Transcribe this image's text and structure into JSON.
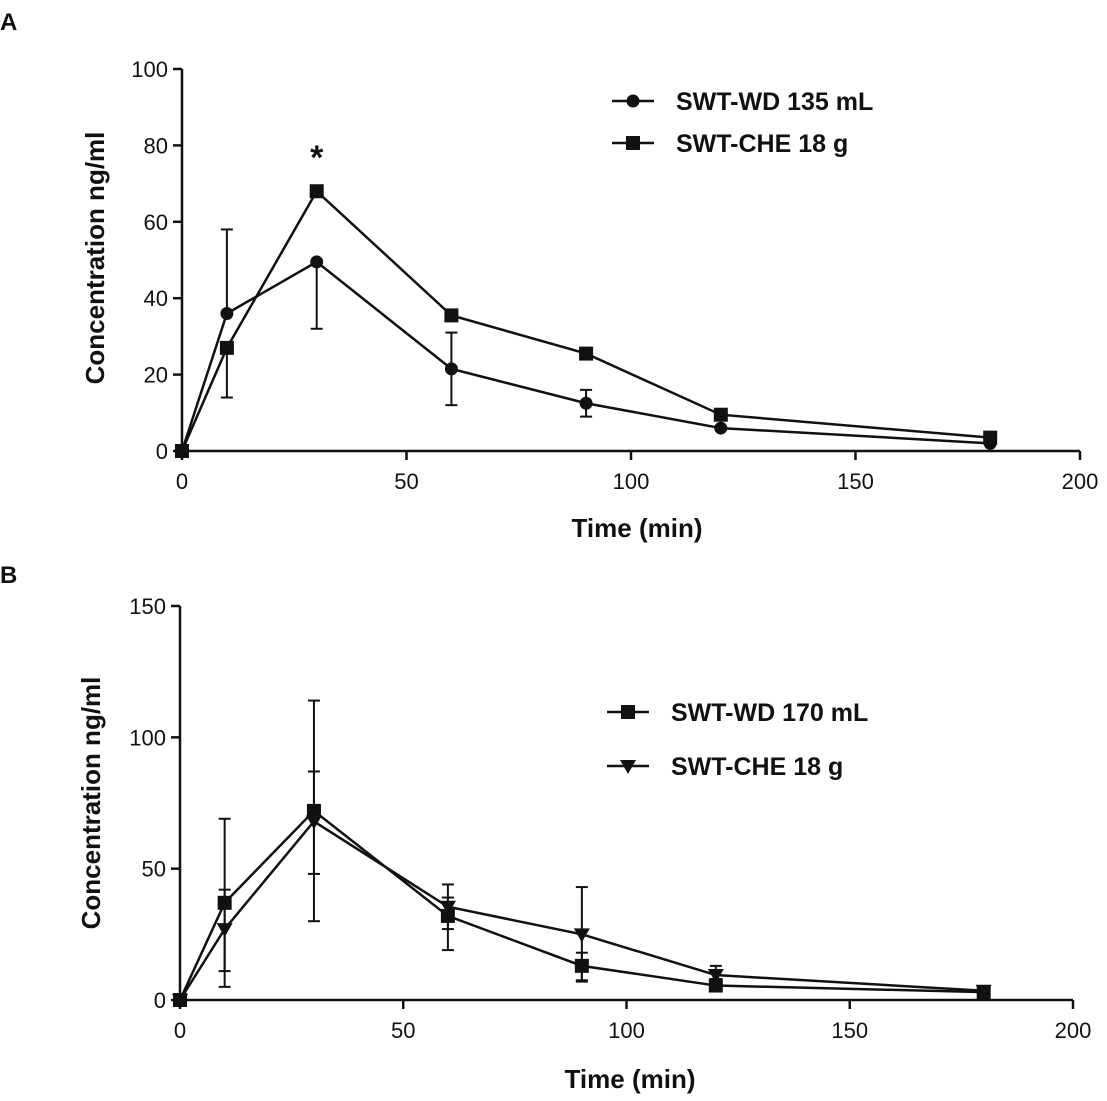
{
  "chart_data": [
    {
      "panel": "A",
      "type": "line",
      "title": "",
      "xlabel": "Time (min)",
      "ylabel": "Concentration ng/ml",
      "xlim": [
        0,
        200
      ],
      "ylim": [
        0,
        100
      ],
      "xticks": [
        0,
        50,
        100,
        150,
        200
      ],
      "yticks": [
        0,
        20,
        40,
        60,
        80,
        100
      ],
      "legend_position": "top-right",
      "annotations": [
        {
          "text": "*",
          "x": 30,
          "y": 77
        }
      ],
      "series": [
        {
          "name": "SWT-WD 135 mL",
          "marker": "circle",
          "x": [
            0,
            10,
            30,
            60,
            90,
            120,
            180
          ],
          "values": [
            0,
            36,
            49.5,
            21.5,
            12.5,
            6,
            2
          ],
          "error_upper": [
            0,
            58,
            49.5,
            31,
            16,
            6,
            2
          ],
          "error_lower": [
            0,
            36,
            32,
            12,
            9,
            6,
            2
          ]
        },
        {
          "name": "SWT-CHE 18 g",
          "marker": "square",
          "x": [
            0,
            10,
            30,
            60,
            90,
            120,
            180
          ],
          "values": [
            0,
            27,
            68,
            35.5,
            25.5,
            9.5,
            3.5
          ],
          "error_upper": [
            0,
            27,
            69,
            35.5,
            25.5,
            9.5,
            3.5
          ],
          "error_lower": [
            0,
            14,
            68,
            35.5,
            25.5,
            9.5,
            3.5
          ]
        }
      ]
    },
    {
      "panel": "B",
      "type": "line",
      "title": "",
      "xlabel": "Time (min)",
      "ylabel": "Concentration ng/ml",
      "xlim": [
        0,
        200
      ],
      "ylim": [
        0,
        150
      ],
      "xticks": [
        0,
        50,
        100,
        150,
        200
      ],
      "yticks": [
        0,
        50,
        100,
        150
      ],
      "legend_position": "right",
      "annotations": [],
      "series": [
        {
          "name": "SWT-WD 170 mL",
          "marker": "square",
          "x": [
            0,
            10,
            30,
            60,
            90,
            120,
            180
          ],
          "values": [
            0,
            37,
            72,
            32,
            13,
            5.5,
            3
          ],
          "error_upper": [
            0,
            69,
            114,
            39,
            18,
            8,
            3
          ],
          "error_lower": [
            0,
            5,
            30,
            19,
            7.5,
            4,
            3
          ]
        },
        {
          "name": "SWT-CHE 18 g",
          "marker": "triangle-down",
          "x": [
            0,
            10,
            30,
            60,
            90,
            120,
            180
          ],
          "values": [
            0,
            27,
            68,
            35.5,
            25,
            9.5,
            3.5
          ],
          "error_upper": [
            0,
            42,
            87,
            44,
            43,
            13,
            3.5
          ],
          "error_lower": [
            0,
            11,
            48,
            27,
            7,
            6,
            3.5
          ]
        }
      ]
    }
  ]
}
